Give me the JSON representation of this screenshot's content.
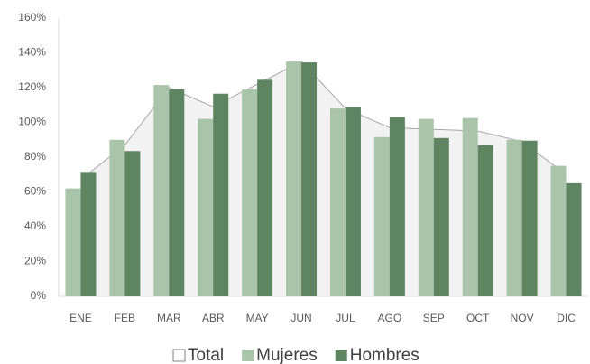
{
  "chart_data": {
    "type": "bar",
    "categories": [
      "ENE",
      "FEB",
      "MAR",
      "ABR",
      "MAY",
      "JUN",
      "JUL",
      "AGO",
      "SEP",
      "OCT",
      "NOV",
      "DIC"
    ],
    "series": [
      {
        "name": "Total",
        "type": "area",
        "color": "#f2f2f2",
        "stroke": "#a6a6a6",
        "values": [
          67,
          87,
          120,
          109,
          122,
          135,
          108,
          97,
          96,
          95,
          89,
          70
        ]
      },
      {
        "name": "Mujeres",
        "color": "#a9c4a9",
        "values": [
          62,
          90,
          121.5,
          102,
          119,
          135,
          108,
          91.5,
          102,
          102.5,
          90,
          75
        ]
      },
      {
        "name": "Hombres",
        "color": "#5e8462",
        "values": [
          71.5,
          83.5,
          119,
          116.5,
          124.5,
          134.5,
          109,
          103,
          91,
          87,
          89.5,
          65
        ]
      }
    ],
    "ylim": [
      0,
      160
    ],
    "yticks": [
      {
        "value": 0,
        "label": "0%"
      },
      {
        "value": 20,
        "label": "20%"
      },
      {
        "value": 40,
        "label": "40%"
      },
      {
        "value": 60,
        "label": "60%"
      },
      {
        "value": 80,
        "label": "80%"
      },
      {
        "value": 100,
        "label": "100%"
      },
      {
        "value": 120,
        "label": "120%"
      },
      {
        "value": 140,
        "label": "140%"
      },
      {
        "value": 160,
        "label": "160%"
      }
    ],
    "grid": false,
    "legend": "bottom"
  }
}
